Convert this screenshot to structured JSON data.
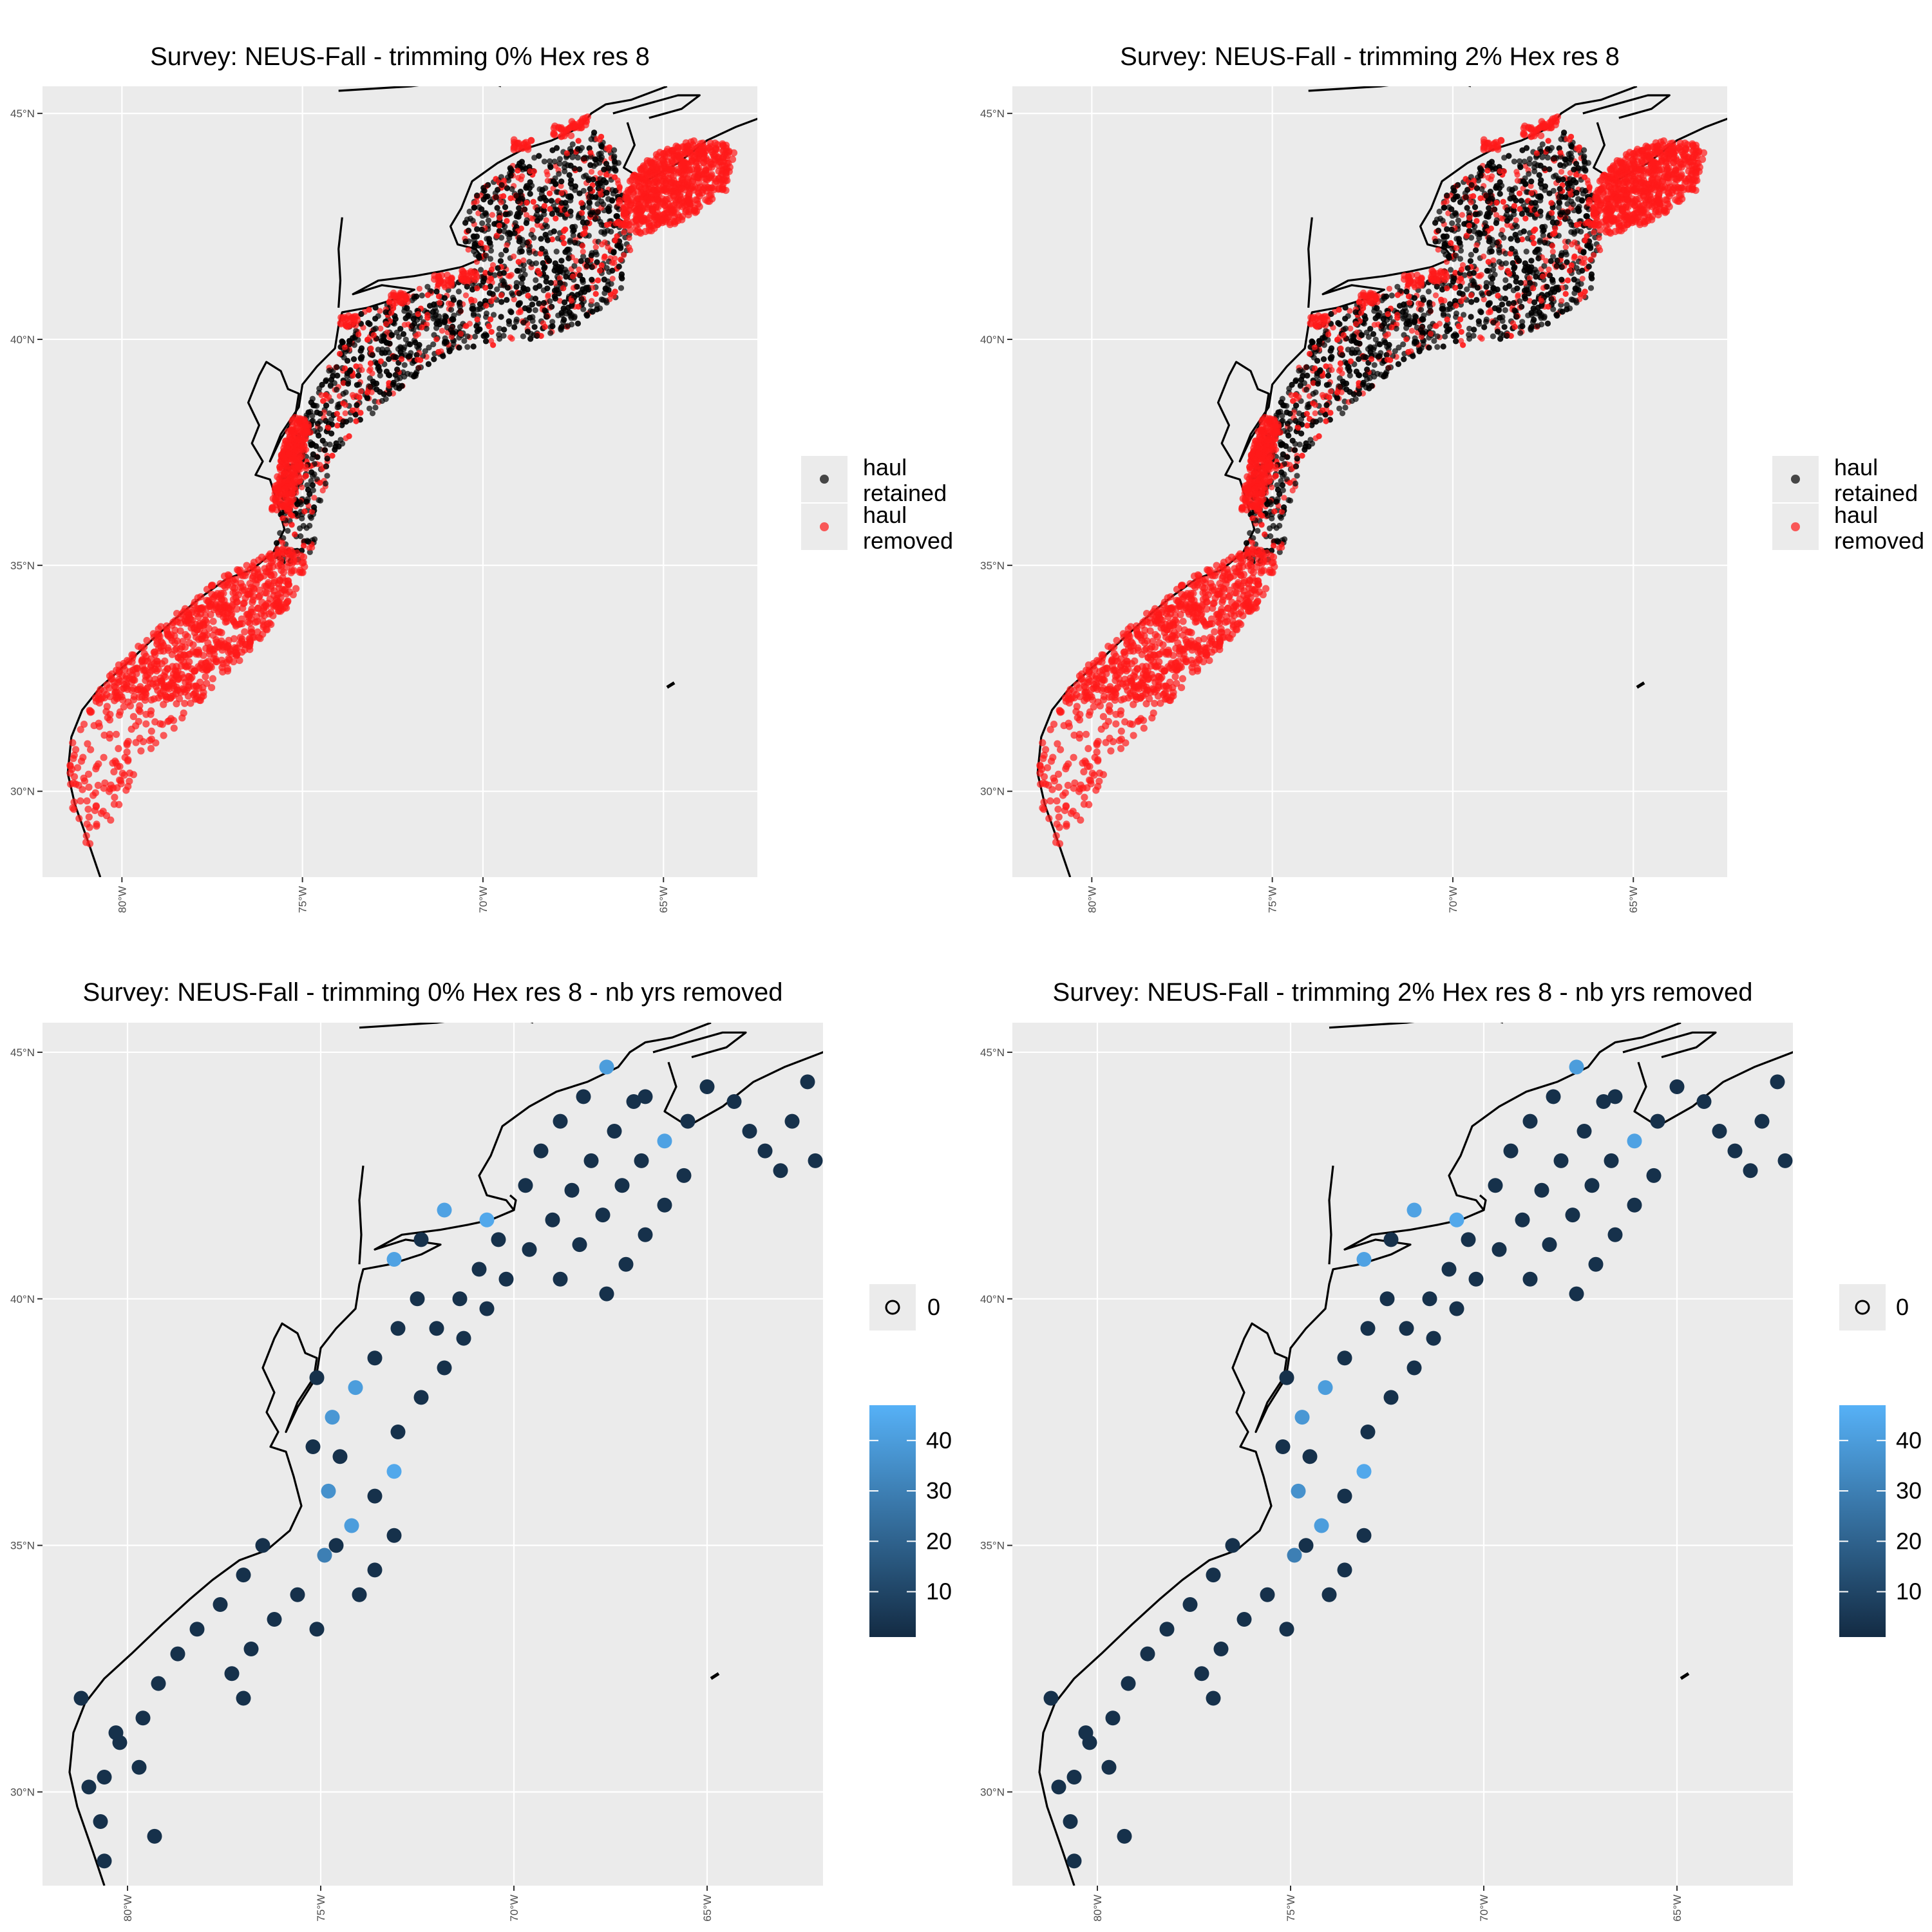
{
  "colors": {
    "panel_bg": "#ebebeb",
    "grid": "#ffffff",
    "coast": "#000000",
    "retained": "#000000",
    "removed": "#ff1a1a",
    "count_low": "#132b43",
    "count_high": "#56b1f7"
  },
  "chart_data": [
    {
      "type": "scatter",
      "title": "Survey: NEUS-Fall - trimming 0% Hex res 8",
      "xlabel": "",
      "ylabel": "",
      "x_ticks": [
        "80°W",
        "75°W",
        "70°W",
        "65°W"
      ],
      "y_ticks": [
        "30°N",
        "35°N",
        "40°N",
        "45°N"
      ],
      "xlim": [
        -82.2,
        -62.4
      ],
      "ylim": [
        28.1,
        45.6
      ],
      "grid": true,
      "legend": {
        "position": "right",
        "entries": [
          "haul retained",
          "haul removed"
        ]
      },
      "series": [
        {
          "name": "haul retained",
          "description": "dense hauls on the shelf from Cape Hatteras to the Gulf of Maine, roughly 35°N–44.7°N"
        },
        {
          "name": "haul removed",
          "description": "hauls south of Cape Hatteras (28.8°N–34.8°N), inshore Chesapeake–Carolina strip, and eastern Scotian Shelf near 65°W–63°W, 42.5°N–44°N"
        }
      ]
    },
    {
      "type": "scatter",
      "title": "Survey: NEUS-Fall - trimming 2% Hex res 8",
      "xlabel": "",
      "ylabel": "",
      "x_ticks": [
        "80°W",
        "75°W",
        "70°W",
        "65°W"
      ],
      "y_ticks": [
        "30°N",
        "35°N",
        "40°N",
        "45°N"
      ],
      "xlim": [
        -82.2,
        -62.4
      ],
      "ylim": [
        28.1,
        45.6
      ],
      "grid": true,
      "legend": {
        "position": "right",
        "entries": [
          "haul retained",
          "haul removed"
        ]
      },
      "series": [
        {
          "name": "haul retained",
          "description": "same spatial pattern as 0% trimming"
        },
        {
          "name": "haul removed",
          "description": "same spatial pattern as 0% trimming"
        }
      ]
    },
    {
      "type": "scatter",
      "title": "Survey: NEUS-Fall - trimming 0% Hex res 8 - nb yrs removed",
      "xlabel": "",
      "ylabel": "",
      "x_ticks": [
        "80°W",
        "75°W",
        "70°W",
        "65°W"
      ],
      "y_ticks": [
        "30°N",
        "35°N",
        "40°N",
        "45°N"
      ],
      "xlim": [
        -82.2,
        -62.0
      ],
      "ylim": [
        28.1,
        45.6
      ],
      "grid": true,
      "legend": {
        "position": "right",
        "shape_entries": [
          "0"
        ],
        "colorbar_ticks": [
          "10",
          "20",
          "30",
          "40"
        ],
        "color_range": [
          1,
          47
        ]
      },
      "points": [
        [
          -75.1,
          38.4,
          3
        ],
        [
          -75.2,
          37.0,
          3
        ],
        [
          -74.7,
          37.6,
          38
        ],
        [
          -74.1,
          38.2,
          40
        ],
        [
          -73.6,
          38.8,
          3
        ],
        [
          -73.0,
          39.4,
          3
        ],
        [
          -72.5,
          40.0,
          3
        ],
        [
          -73.1,
          40.8,
          42
        ],
        [
          -74.5,
          36.8,
          3
        ],
        [
          -74.8,
          36.1,
          36
        ],
        [
          -73.6,
          36.0,
          3
        ],
        [
          -73.1,
          36.5,
          44
        ],
        [
          -74.2,
          35.4,
          40
        ],
        [
          -74.9,
          34.8,
          30
        ],
        [
          -73.6,
          34.5,
          3
        ],
        [
          -73.1,
          35.2,
          3
        ],
        [
          -73.0,
          37.3,
          3
        ],
        [
          -72.4,
          38.0,
          3
        ],
        [
          -71.8,
          38.6,
          3
        ],
        [
          -71.3,
          39.2,
          3
        ],
        [
          -70.7,
          39.8,
          3
        ],
        [
          -70.2,
          40.4,
          3
        ],
        [
          -69.6,
          41.0,
          3
        ],
        [
          -69.0,
          41.6,
          3
        ],
        [
          -68.5,
          42.2,
          3
        ],
        [
          -68.0,
          42.8,
          3
        ],
        [
          -67.4,
          43.4,
          3
        ],
        [
          -66.9,
          44.0,
          3
        ],
        [
          -70.4,
          41.2,
          3
        ],
        [
          -70.9,
          40.6,
          3
        ],
        [
          -71.4,
          40.0,
          3
        ],
        [
          -72.0,
          39.4,
          3
        ],
        [
          -69.7,
          42.3,
          3
        ],
        [
          -69.3,
          43.0,
          3
        ],
        [
          -68.8,
          43.6,
          3
        ],
        [
          -68.2,
          44.1,
          3
        ],
        [
          -67.6,
          44.7,
          40
        ],
        [
          -66.6,
          44.1,
          3
        ],
        [
          -66.1,
          43.2,
          42
        ],
        [
          -65.5,
          43.6,
          3
        ],
        [
          -65.0,
          44.3,
          3
        ],
        [
          -64.3,
          44.0,
          3
        ],
        [
          -63.9,
          43.4,
          3
        ],
        [
          -63.5,
          43.0,
          3
        ],
        [
          -63.1,
          42.6,
          3
        ],
        [
          -62.2,
          42.8,
          3
        ],
        [
          -62.8,
          43.6,
          3
        ],
        [
          -62.4,
          44.4,
          3
        ],
        [
          -66.7,
          42.8,
          3
        ],
        [
          -67.2,
          42.3,
          3
        ],
        [
          -67.7,
          41.7,
          3
        ],
        [
          -68.3,
          41.1,
          3
        ],
        [
          -68.8,
          40.4,
          3
        ],
        [
          -65.6,
          42.5,
          3
        ],
        [
          -66.1,
          41.9,
          3
        ],
        [
          -66.6,
          41.3,
          3
        ],
        [
          -67.1,
          40.7,
          3
        ],
        [
          -67.6,
          40.1,
          3
        ],
        [
          -71.8,
          41.8,
          42
        ],
        [
          -70.7,
          41.6,
          44
        ],
        [
          -72.4,
          41.2,
          3
        ],
        [
          -76.5,
          35.0,
          3
        ],
        [
          -77.0,
          34.4,
          3
        ],
        [
          -77.6,
          33.8,
          3
        ],
        [
          -78.2,
          33.3,
          3
        ],
        [
          -78.7,
          32.8,
          3
        ],
        [
          -79.2,
          32.2,
          3
        ],
        [
          -79.6,
          31.5,
          3
        ],
        [
          -80.2,
          31.0,
          3
        ],
        [
          -81.2,
          31.9,
          3
        ],
        [
          -81.0,
          30.1,
          3
        ],
        [
          -80.7,
          29.4,
          3
        ],
        [
          -80.6,
          28.6,
          3
        ],
        [
          -80.6,
          30.3,
          3
        ],
        [
          -79.7,
          30.5,
          3
        ],
        [
          -80.3,
          31.2,
          3
        ],
        [
          -79.3,
          29.1,
          3
        ],
        [
          -75.6,
          34.0,
          3
        ],
        [
          -76.2,
          33.5,
          3
        ],
        [
          -76.8,
          32.9,
          3
        ],
        [
          -77.3,
          32.4,
          3
        ],
        [
          -77.0,
          31.9,
          3
        ],
        [
          -75.1,
          33.3,
          3
        ],
        [
          -74.0,
          34.0,
          3
        ],
        [
          -74.6,
          35.0,
          3
        ]
      ]
    },
    {
      "type": "scatter",
      "title": "Survey: NEUS-Fall - trimming 2% Hex res 8 - nb yrs removed",
      "xlabel": "",
      "ylabel": "",
      "x_ticks": [
        "80°W",
        "75°W",
        "70°W",
        "65°W"
      ],
      "y_ticks": [
        "30°N",
        "35°N",
        "40°N",
        "45°N"
      ],
      "xlim": [
        -82.2,
        -62.0
      ],
      "ylim": [
        28.1,
        45.6
      ],
      "grid": true,
      "legend": {
        "position": "right",
        "shape_entries": [
          "0"
        ],
        "colorbar_ticks": [
          "10",
          "20",
          "30",
          "40"
        ],
        "color_range": [
          1,
          47
        ]
      },
      "points": "same as 0% trimming panel"
    }
  ]
}
